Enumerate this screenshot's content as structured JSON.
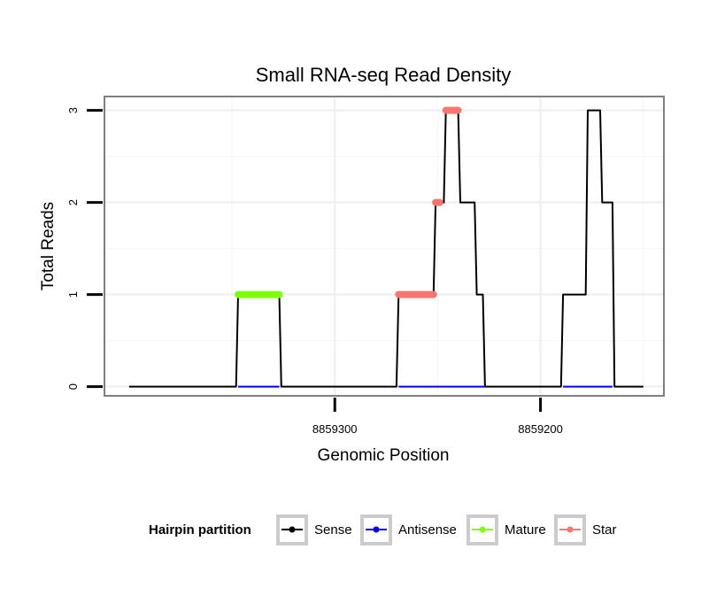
{
  "chart_data": {
    "type": "line",
    "title": "Small RNA-seq Read Density",
    "xlabel": "Genomic Position",
    "ylabel": "Total Reads",
    "x_reversed": true,
    "xlim": [
      8859412,
      8859140
    ],
    "ylim": [
      -0.1,
      3.15
    ],
    "x_ticks": [
      8859300,
      8859200
    ],
    "x_tick_labels": [
      "8859300",
      "8859200"
    ],
    "y_ticks": [
      0,
      1,
      2,
      3
    ],
    "y_tick_labels": [
      "0",
      "1",
      "2",
      "3"
    ],
    "grid": true,
    "legend_position": "bottom",
    "legend_title": "Hairpin partition",
    "series": [
      {
        "name": "Sense",
        "color": "#000000",
        "x": [
          8859400,
          8859348,
          8859347,
          8859327,
          8859326,
          8859270,
          8859269,
          8859252,
          8859251,
          8859247,
          8859246,
          8859240,
          8859239,
          8859232,
          8859231,
          8859228,
          8859227,
          8859226,
          8859225,
          8859190,
          8859189,
          8859178,
          8859177,
          8859171,
          8859170,
          8859165,
          8859164,
          8859150
        ],
        "y": [
          0,
          0,
          1,
          1,
          0,
          0,
          1,
          1,
          2,
          2,
          3,
          3,
          2,
          2,
          1,
          1,
          0,
          0,
          0,
          0,
          1,
          1,
          3,
          3,
          2,
          2,
          0,
          0
        ]
      },
      {
        "name": "Antisense",
        "color": "#0000ff",
        "x": [
          8859347,
          8859327,
          8859269,
          8859227,
          8859189,
          8859165
        ],
        "y": [
          0,
          0,
          0,
          0,
          0,
          0
        ],
        "breaks_after": [
          1,
          3
        ]
      },
      {
        "name": "Mature",
        "color": "#7fff00",
        "x": [
          8859347,
          8859327
        ],
        "y": [
          1,
          1
        ]
      },
      {
        "name": "Star",
        "color": "#f8766d",
        "x": [
          8859269,
          8859252,
          8859251,
          8859249,
          8859246,
          8859240
        ],
        "y": [
          1,
          1,
          2,
          2,
          3,
          3
        ],
        "breaks_after": [
          1,
          3
        ]
      }
    ]
  }
}
